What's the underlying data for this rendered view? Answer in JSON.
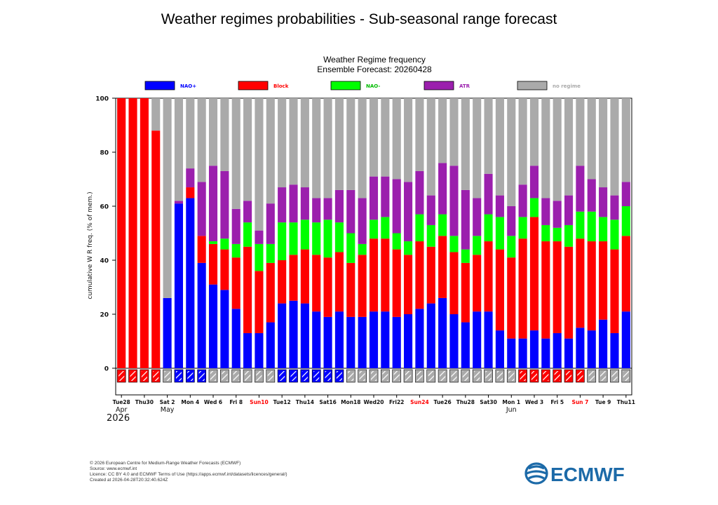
{
  "page": {
    "title": "Weather regimes probabilities - Sub-seasonal range forecast"
  },
  "footer": {
    "copyright": "© 2026 European Centre for Medium-Range Weather Forecasts (ECMWF)",
    "source": "Source: www.ecmwf.int",
    "licence": "Licence: CC BY 4.0 and ECMWF Terms of Use (https://apps.ecmwf.int/datasets/licences/general/)",
    "created": "Created at 2026-04-28T20:32:40.624Z"
  },
  "logo": {
    "text": "ECMWF",
    "color": "#1c6aa8"
  },
  "chart_data": {
    "type": "bar",
    "stacked": true,
    "title": "Weather Regime frequency",
    "subtitle": "Ensemble Forecast: 20260428",
    "ylabel": "cumulative W R freq. (% of mem.)",
    "ylim": [
      0,
      100
    ],
    "yticks": [
      0,
      20,
      40,
      60,
      80,
      100
    ],
    "n_days": 45,
    "series": [
      {
        "name": "NAO+",
        "color": "#0000ff",
        "values": [
          0,
          0,
          0,
          0,
          26,
          61,
          63,
          39,
          31,
          29,
          22,
          13,
          13,
          17,
          24,
          25,
          24,
          21,
          19,
          21,
          19,
          19,
          21,
          21,
          19,
          20,
          22,
          24,
          26,
          20,
          17,
          21,
          21,
          14,
          11,
          11,
          14,
          11,
          13,
          11,
          15,
          14,
          18,
          13,
          21
        ]
      },
      {
        "name": "Block",
        "color": "#ff0000",
        "values": [
          100,
          100,
          100,
          88,
          0,
          0,
          4,
          10,
          15,
          15,
          19,
          32,
          23,
          22,
          16,
          17,
          20,
          21,
          22,
          22,
          20,
          23,
          27,
          27,
          25,
          22,
          25,
          21,
          23,
          23,
          22,
          21,
          26,
          30,
          30,
          37,
          42,
          36,
          34,
          34,
          33,
          33,
          29,
          31,
          28
        ]
      },
      {
        "name": "NAO-",
        "color": "#00ff00",
        "values": [
          0,
          0,
          0,
          0,
          0,
          0,
          0,
          0,
          1,
          4,
          5,
          9,
          10,
          7,
          14,
          12,
          11,
          12,
          14,
          11,
          11,
          4,
          7,
          8,
          6,
          5,
          10,
          8,
          8,
          6,
          5,
          7,
          10,
          12,
          8,
          8,
          7,
          6,
          5,
          8,
          10,
          11,
          9,
          11,
          11
        ]
      },
      {
        "name": "ATR",
        "color": "#9b1fad",
        "values": [
          0,
          0,
          0,
          0,
          0,
          1,
          7,
          20,
          28,
          25,
          13,
          8,
          5,
          15,
          13,
          14,
          12,
          9,
          8,
          12,
          16,
          17,
          16,
          15,
          20,
          22,
          16,
          11,
          19,
          26,
          22,
          14,
          15,
          8,
          11,
          12,
          12,
          10,
          10,
          11,
          17,
          12,
          11,
          9,
          9
        ]
      },
      {
        "name": "no regime",
        "color": "#aaaaaa",
        "values": [
          0,
          0,
          0,
          12,
          74,
          38,
          26,
          31,
          25,
          27,
          41,
          38,
          49,
          39,
          33,
          32,
          33,
          37,
          37,
          34,
          34,
          37,
          29,
          29,
          30,
          31,
          27,
          36,
          24,
          25,
          34,
          37,
          28,
          36,
          40,
          32,
          25,
          37,
          38,
          36,
          25,
          30,
          33,
          36,
          31
        ]
      }
    ],
    "day_regime": [
      "B",
      "B",
      "B",
      "B",
      "N",
      "P",
      "P",
      "P",
      "N",
      "N",
      "N",
      "N",
      "N",
      "N",
      "P",
      "P",
      "P",
      "P",
      "P",
      "P",
      "N",
      "N",
      "N",
      "N",
      "N",
      "N",
      "N",
      "N",
      "N",
      "N",
      "N",
      "N",
      "N",
      "N",
      "N",
      "B",
      "B",
      "B",
      "B",
      "B",
      "B",
      "N",
      "N",
      "N",
      "N"
    ],
    "day_regime_colors": {
      "B": "#ff0000",
      "P": "#0000ff",
      "N": "#aaaaaa"
    },
    "xticks": [
      {
        "day": 0,
        "label": "Tue28",
        "red": false
      },
      {
        "day": 2,
        "label": "Thu30",
        "red": false
      },
      {
        "day": 4,
        "label": "Sat 2",
        "red": false
      },
      {
        "day": 6,
        "label": "Mon 4",
        "red": false
      },
      {
        "day": 8,
        "label": "Wed 6",
        "red": false
      },
      {
        "day": 10,
        "label": "Fri 8",
        "red": false
      },
      {
        "day": 12,
        "label": "Sun10",
        "red": true
      },
      {
        "day": 14,
        "label": "Tue12",
        "red": false
      },
      {
        "day": 16,
        "label": "Thu14",
        "red": false
      },
      {
        "day": 18,
        "label": "Sat16",
        "red": false
      },
      {
        "day": 20,
        "label": "Mon18",
        "red": false
      },
      {
        "day": 22,
        "label": "Wed20",
        "red": false
      },
      {
        "day": 24,
        "label": "Fri22",
        "red": false
      },
      {
        "day": 26,
        "label": "Sun24",
        "red": true
      },
      {
        "day": 28,
        "label": "Tue26",
        "red": false
      },
      {
        "day": 30,
        "label": "Thu28",
        "red": false
      },
      {
        "day": 32,
        "label": "Sat30",
        "red": false
      },
      {
        "day": 34,
        "label": "Mon 1",
        "red": false
      },
      {
        "day": 36,
        "label": "Wed 3",
        "red": false
      },
      {
        "day": 38,
        "label": "Fri 5",
        "red": false
      },
      {
        "day": 40,
        "label": "Sun 7",
        "red": true
      },
      {
        "day": 42,
        "label": "Tue 9",
        "red": false
      },
      {
        "day": 44,
        "label": "Thu11",
        "red": false
      }
    ],
    "month_labels": [
      {
        "day": 0,
        "label": "Apr"
      },
      {
        "day": 4,
        "label": "May"
      },
      {
        "day": 34,
        "label": "Jun"
      }
    ],
    "year_label": "2026"
  }
}
